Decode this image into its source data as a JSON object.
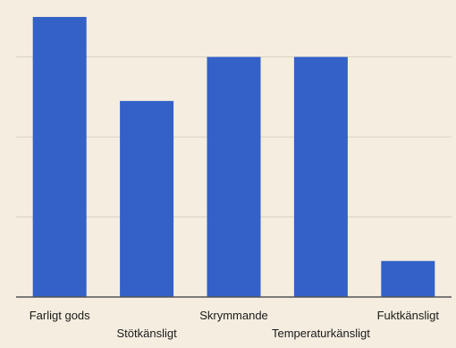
{
  "chart_data": {
    "type": "bar",
    "categories": [
      "Farligt gods",
      "Stötkänsligt",
      "Skrymmande",
      "Temperaturkänsligt",
      "Fuktkänsligt"
    ],
    "values": [
      3.5,
      2.45,
      3.0,
      3.0,
      0.45
    ],
    "ylim": [
      0,
      3.6
    ],
    "grid": true,
    "bar_color": "#3461c8",
    "grid_color": "#d9d2c6",
    "axis_color": "#555555",
    "background_color": "#f5ede0"
  }
}
